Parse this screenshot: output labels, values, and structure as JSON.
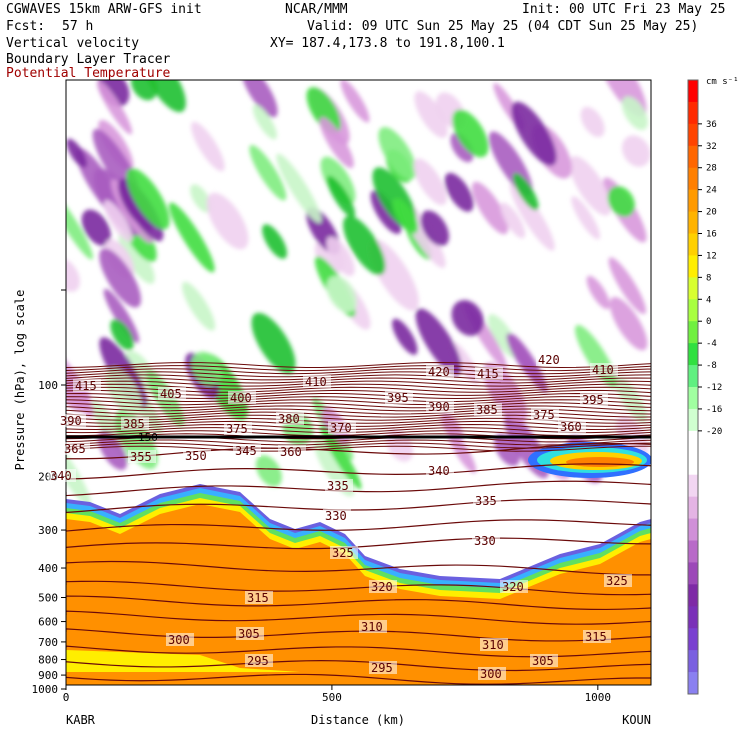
{
  "header": {
    "model": "CGWAVES 15km ARW-GFS init",
    "center": "NCAR/MMM",
    "init": "Init: 00 UTC Fri 23 May 25",
    "fcst_label": "Fcst:",
    "fcst_value": "57 h",
    "valid": "Valid: 09 UTC Sun 25 May 25 (04 CDT Sun 25 May 25)",
    "xy": "XY= 187.4,173.8 to 191.8,100.1"
  },
  "fields": {
    "f1": "Vertical velocity",
    "f2": "Boundary Layer Tracer",
    "f3": "Potential Temperature"
  },
  "colors": {
    "theta": "#6b0a0a",
    "pt_label": "#a00000"
  },
  "chart_data": {
    "type": "heatmap",
    "title": "Vertical velocity",
    "xlabel": "Distance (km)",
    "ylabel": "Pressure (hPa), log scale",
    "x_range": [
      0,
      1100
    ],
    "x_ticks": [
      0,
      500,
      1000
    ],
    "y_scale": "log",
    "y_ticks": [
      100,
      200,
      300,
      400,
      500,
      600,
      700,
      800,
      900,
      1000
    ],
    "endpoints": {
      "left": "KABR",
      "right": "KOUN"
    },
    "colorbar": {
      "units": "cm s⁻¹",
      "labels": [
        "36",
        "32",
        "28",
        "24",
        "20",
        "16",
        "12",
        "8",
        "4",
        "0",
        "-4",
        "-8",
        "-12",
        "-16",
        "-20"
      ],
      "colors": [
        "#ff0000",
        "#ff2a00",
        "#ff4400",
        "#ff6600",
        "#ff7f00",
        "#ff9a00",
        "#ffb300",
        "#ffd000",
        "#ffee00",
        "#d8ff30",
        "#a8ff40",
        "#70f040",
        "#30e040",
        "#60f080",
        "#a0ffa0",
        "#d0ffd0",
        "#ffffff",
        "#ffffff",
        "#f2d6f2",
        "#e4b4e4",
        "#d090d8",
        "#b86ac8",
        "#9c48b8",
        "#7e2aa6",
        "#7a30b8",
        "#7a40d0",
        "#7a60e0",
        "#8a80f0"
      ]
    },
    "theta_contour_labels": [
      "415",
      "405",
      "400",
      "410",
      "420",
      "415",
      "420",
      "410",
      "390",
      "385",
      "375",
      "380",
      "370",
      "395",
      "390",
      "385",
      "375",
      "395",
      "365",
      "360",
      "355",
      "350",
      "345",
      "360",
      "340",
      "340",
      "335",
      "330",
      "335",
      "330",
      "325",
      "320",
      "320",
      "325",
      "315",
      "310",
      "305",
      "300",
      "310",
      "315",
      "295",
      "295",
      "305",
      "300"
    ],
    "annotation": "150"
  }
}
